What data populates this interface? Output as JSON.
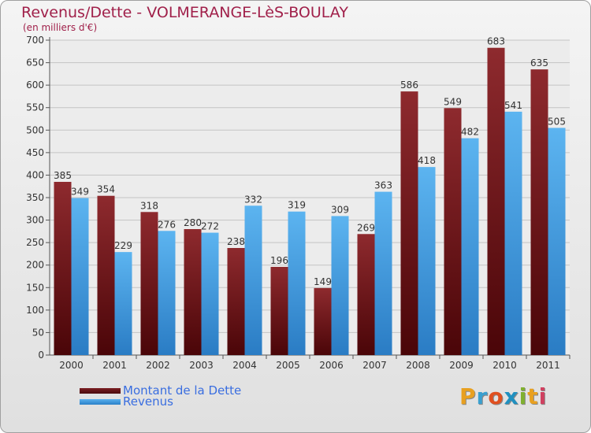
{
  "chart_data": {
    "type": "bar",
    "title": "Revenus/Dette - VOLMERANGE-LèS-BOULAY",
    "subtitle": "(en milliers d'€)",
    "categories": [
      "2000",
      "2001",
      "2002",
      "2003",
      "2004",
      "2005",
      "2006",
      "2007",
      "2008",
      "2009",
      "2010",
      "2011"
    ],
    "series": [
      {
        "name": "Montant de la Dette",
        "color": "#7a1e22",
        "values": [
          385,
          354,
          318,
          280,
          238,
          196,
          149,
          269,
          586,
          549,
          683,
          635
        ]
      },
      {
        "name": "Revenus",
        "color": "#3d9be0",
        "values": [
          349,
          229,
          276,
          272,
          332,
          319,
          309,
          363,
          418,
          482,
          541,
          505
        ]
      }
    ],
    "ylim": [
      0,
      700
    ],
    "yticks": [
      0,
      50,
      100,
      150,
      200,
      250,
      300,
      350,
      400,
      450,
      500,
      550,
      600,
      650,
      700
    ],
    "grid": true,
    "legend_position": "bottom-left"
  },
  "logo": {
    "letters": [
      "P",
      "r",
      "o",
      "x",
      "i",
      "t",
      "i"
    ],
    "colors": [
      "#e8a020",
      "#3aa0d0",
      "#e05020",
      "#2090c0",
      "#80b030",
      "#e8a020",
      "#d04060"
    ]
  }
}
